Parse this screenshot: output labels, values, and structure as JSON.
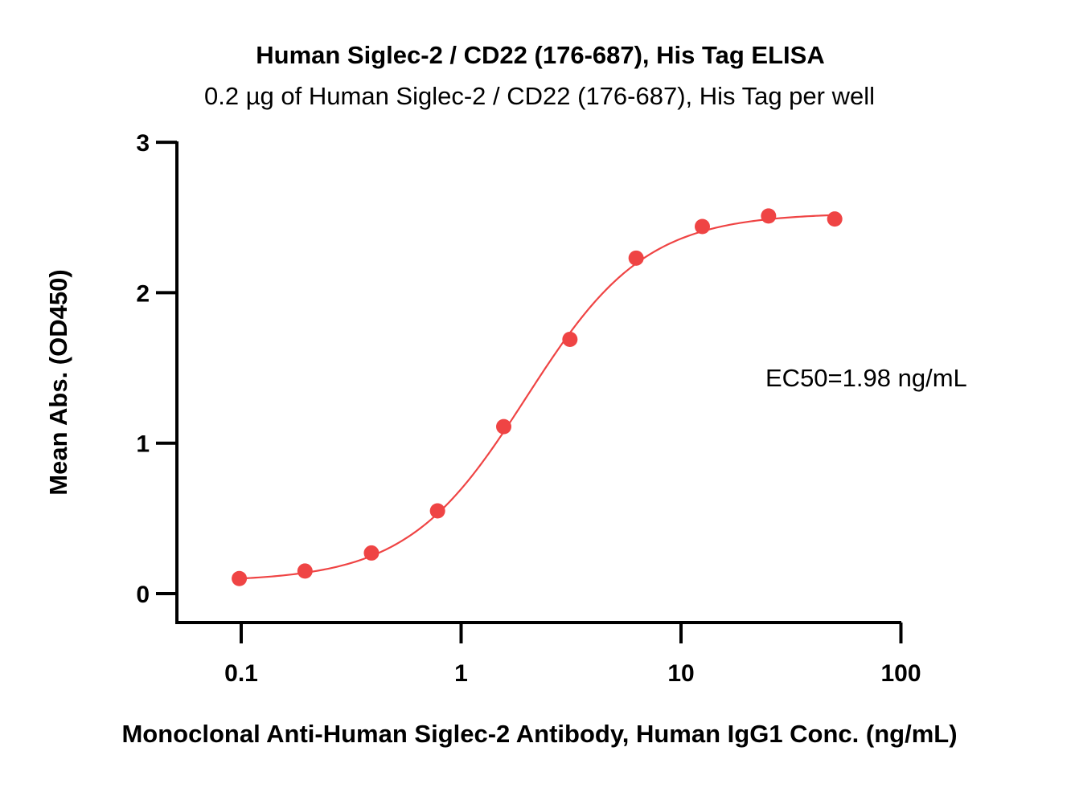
{
  "chart_data": {
    "type": "scatter",
    "title": "Human Siglec-2 / CD22 (176-687), His Tag ELISA",
    "subtitle": "0.2 µg of Human Siglec-2 / CD22 (176-687), His Tag per well",
    "xlabel": "Monoclonal Anti-Human Siglec-2 Antibody, Human IgG1 Conc. (ng/mL)",
    "ylabel": "Mean Abs. (OD450)",
    "x_scale": "log",
    "xlim": [
      0.05,
      100
    ],
    "ylim": [
      -0.2,
      3
    ],
    "x_ticks": [
      {
        "value": 0.1,
        "label": "0.1"
      },
      {
        "value": 1,
        "label": "1"
      },
      {
        "value": 10,
        "label": "10"
      },
      {
        "value": 100,
        "label": "100"
      }
    ],
    "y_ticks": [
      {
        "value": 0,
        "label": "0"
      },
      {
        "value": 1,
        "label": "1"
      },
      {
        "value": 2,
        "label": "2"
      },
      {
        "value": 3,
        "label": "3"
      }
    ],
    "grid": false,
    "series": [
      {
        "color": "#ef4444",
        "x": [
          0.098,
          0.195,
          0.391,
          0.781,
          1.5625,
          3.125,
          6.25,
          12.5,
          25,
          50
        ],
        "y": [
          0.1,
          0.15,
          0.27,
          0.55,
          1.11,
          1.69,
          2.23,
          2.44,
          2.51,
          2.49
        ]
      }
    ],
    "fit_curve": {
      "model": "4PL",
      "bottom": 0.08,
      "top": 2.53,
      "ec50": 1.98,
      "hill": 1.6,
      "color": "#ef4444"
    },
    "annotations": [
      {
        "text": "EC50=1.98 ng/mL"
      }
    ]
  }
}
